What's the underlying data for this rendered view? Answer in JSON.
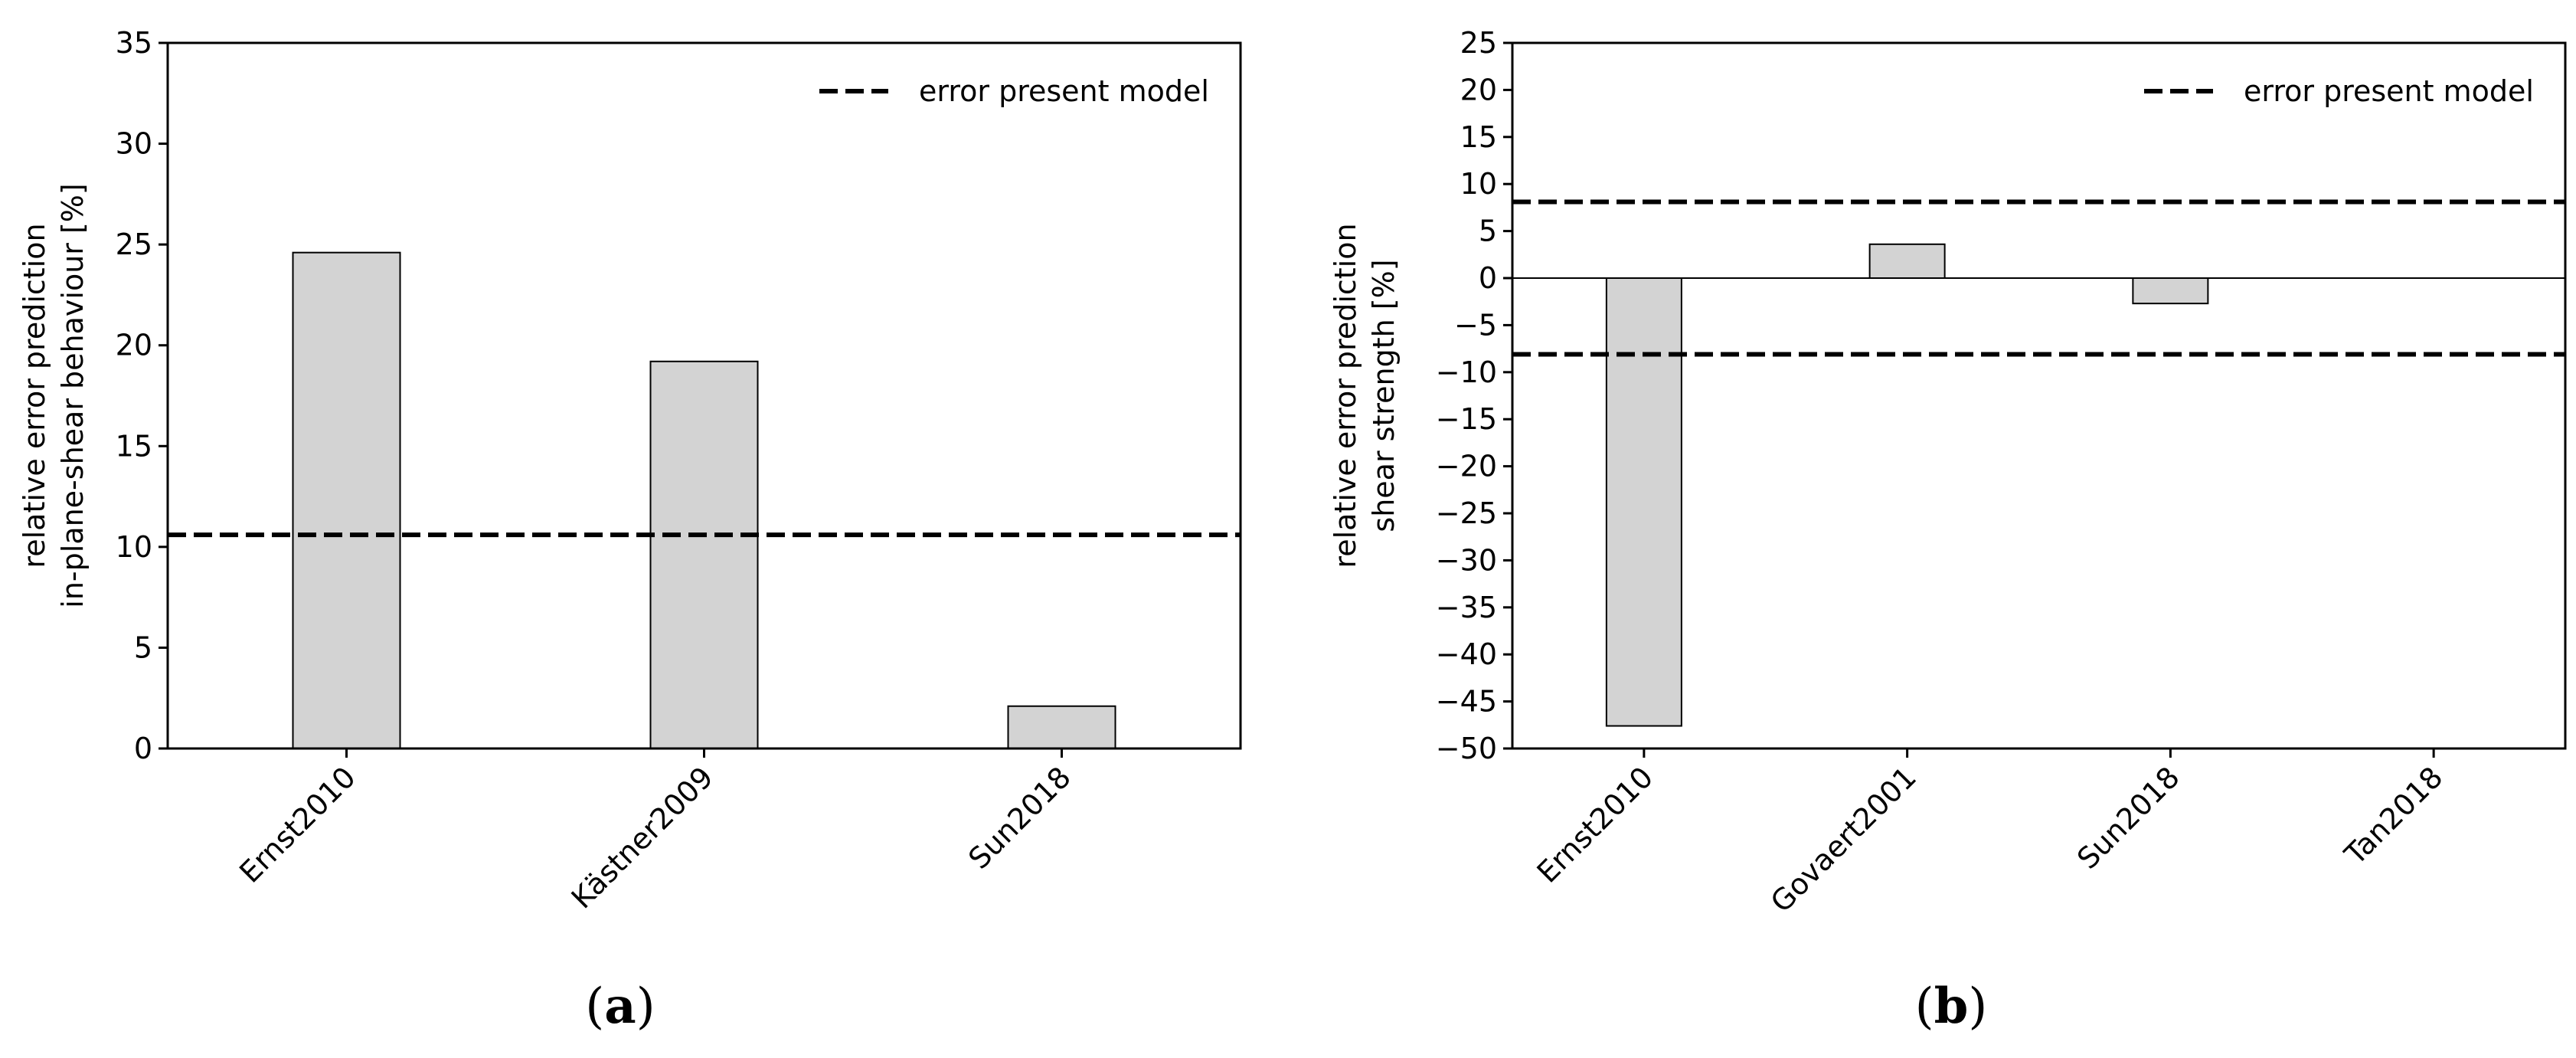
{
  "chart_data": [
    {
      "type": "bar",
      "panel_label": "a",
      "categories": [
        "Ernst2010",
        "Kästner2009",
        "Sun2018"
      ],
      "values": [
        24.6,
        19.2,
        2.1
      ],
      "bar_color": "#d3d3d3",
      "ylabel_lines": [
        "relative error prediction",
        "in-plane-shear behaviour [%]"
      ],
      "xlabel": "",
      "ylim": [
        0,
        35
      ],
      "yticks": [
        0,
        5,
        10,
        15,
        20,
        25,
        30,
        35
      ],
      "reference_lines": [
        10.6
      ],
      "legend": {
        "label": "error present model",
        "placement": "top-right"
      },
      "grid": false
    },
    {
      "type": "bar",
      "panel_label": "b",
      "categories": [
        "Ernst2010",
        "Govaert2001",
        "Sun2018",
        "Tan2018"
      ],
      "values": [
        -47.6,
        3.6,
        -2.7,
        0
      ],
      "bar_color": "#d3d3d3",
      "ylabel_lines": [
        "relative error prediction",
        "shear strength [%]"
      ],
      "xlabel": "",
      "ylim": [
        -50,
        25
      ],
      "yticks": [
        -50,
        -45,
        -40,
        -35,
        -30,
        -25,
        -20,
        -15,
        -10,
        -5,
        0,
        5,
        10,
        15,
        20,
        25
      ],
      "reference_lines": [
        8.1,
        -8.1
      ],
      "zero_line": true,
      "legend": {
        "label": "error present model",
        "placement": "top-right"
      },
      "grid": false
    }
  ]
}
